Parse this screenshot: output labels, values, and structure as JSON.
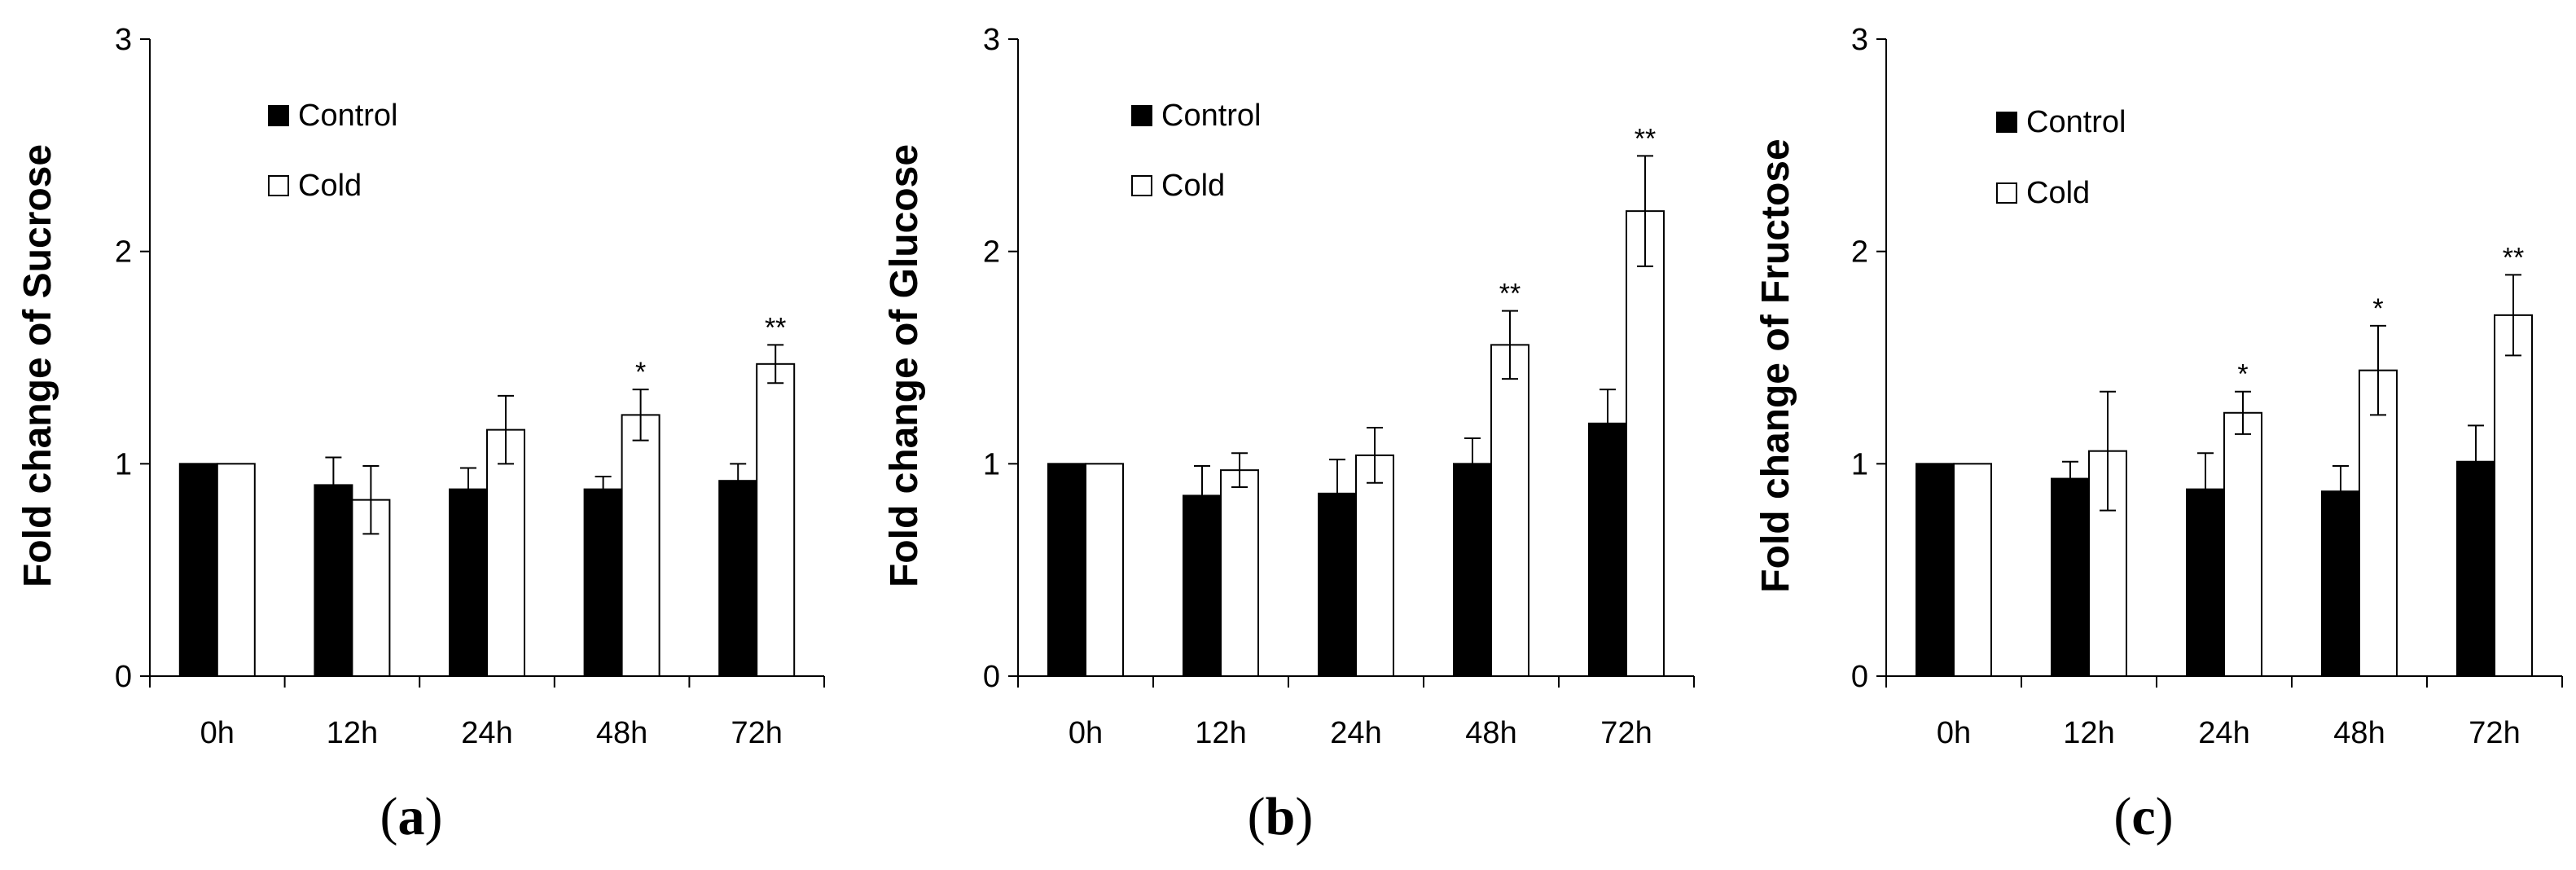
{
  "chart_data": [
    {
      "type": "bar",
      "panel": "a",
      "ylabel": "Fold change of Sucrose",
      "ylim": [
        0,
        3
      ],
      "yticks": [
        "0",
        "1",
        "2",
        "3"
      ],
      "categories": [
        "0h",
        "12h",
        "24h",
        "48h",
        "72h"
      ],
      "series": [
        {
          "name": "Control",
          "values": [
            1.0,
            0.9,
            0.88,
            0.88,
            0.92
          ],
          "errors": [
            0,
            0.13,
            0.1,
            0.06,
            0.08
          ],
          "color": "#000000"
        },
        {
          "name": "Cold",
          "values": [
            1.0,
            0.83,
            1.16,
            1.23,
            1.47
          ],
          "errors": [
            0,
            0.16,
            0.16,
            0.12,
            0.09
          ],
          "color": "#ffffff"
        }
      ],
      "significance": [
        "",
        "",
        "",
        "*",
        "**"
      ],
      "legend_position": "top-left"
    },
    {
      "type": "bar",
      "panel": "b",
      "ylabel": "Fold change of Glucose",
      "ylim": [
        0,
        3
      ],
      "yticks": [
        "0",
        "1",
        "2",
        "3"
      ],
      "categories": [
        "0h",
        "12h",
        "24h",
        "48h",
        "72h"
      ],
      "series": [
        {
          "name": "Control",
          "values": [
            1.0,
            0.85,
            0.86,
            1.0,
            1.19
          ],
          "errors": [
            0,
            0.14,
            0.16,
            0.12,
            0.16
          ],
          "color": "#000000"
        },
        {
          "name": "Cold",
          "values": [
            1.0,
            0.97,
            1.04,
            1.56,
            2.19
          ],
          "errors": [
            0,
            0.08,
            0.13,
            0.16,
            0.26
          ],
          "color": "#ffffff"
        }
      ],
      "significance": [
        "",
        "",
        "",
        "**",
        "**"
      ],
      "legend_position": "top-left"
    },
    {
      "type": "bar",
      "panel": "c",
      "ylabel": "Fold change of Fructose",
      "ylim": [
        0,
        3
      ],
      "yticks": [
        "0",
        "1",
        "2",
        "3"
      ],
      "categories": [
        "0h",
        "12h",
        "24h",
        "48h",
        "72h"
      ],
      "series": [
        {
          "name": "Control",
          "values": [
            1.0,
            0.93,
            0.88,
            0.87,
            1.01
          ],
          "errors": [
            0,
            0.08,
            0.17,
            0.12,
            0.17
          ],
          "color": "#000000"
        },
        {
          "name": "Cold",
          "values": [
            1.0,
            1.06,
            1.24,
            1.44,
            1.7
          ],
          "errors": [
            0,
            0.28,
            0.1,
            0.21,
            0.19
          ],
          "color": "#ffffff"
        }
      ],
      "significance": [
        "",
        "",
        "*",
        "*",
        "**"
      ],
      "legend_position": "top-left"
    }
  ],
  "panel_labels": [
    {
      "open": "(",
      "letter": "a",
      "close": ")"
    },
    {
      "open": "(",
      "letter": "b",
      "close": ")"
    },
    {
      "open": "(",
      "letter": "c",
      "close": ")"
    }
  ]
}
